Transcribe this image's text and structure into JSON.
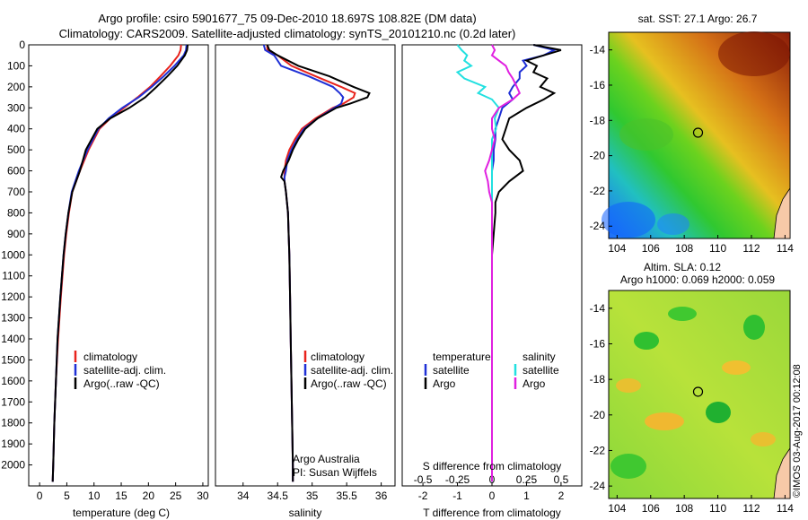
{
  "title_line1": "Argo profile: csiro 5901677_75 09-Dec-2010 18.697S 108.82E (DM data)",
  "title_line2": "Climatology: CARS2009. Satellite-adjusted climatology: synTS_20101210.nc (0.2d later)",
  "footer_stamp": "©IMOS 03-Aug-2017 00:12:08",
  "colors": {
    "climatology": "#e8231c",
    "satellite": "#1f30d6",
    "argo": "#000000",
    "sal_satellite": "#22e0e0",
    "sal_argo": "#e020e0"
  },
  "chart_data": [
    {
      "id": "temperature",
      "type": "line",
      "xlabel": "temperature (deg C)",
      "ylabel": "",
      "xlim": [
        -2,
        31
      ],
      "ylim": [
        2100,
        0
      ],
      "xticks": [
        0,
        5,
        10,
        15,
        20,
        25,
        30
      ],
      "yticks": [
        0,
        100,
        200,
        300,
        400,
        500,
        600,
        700,
        800,
        900,
        1000,
        1100,
        1200,
        1300,
        1400,
        1500,
        1600,
        1700,
        1800,
        1900,
        2000
      ],
      "legend": [
        "climatology",
        "satellite-adj. clim.",
        "Argo(..raw -QC)"
      ],
      "depth": [
        0,
        25,
        50,
        100,
        150,
        200,
        250,
        300,
        350,
        400,
        500,
        600,
        700,
        800,
        900,
        1000,
        1200,
        1400,
        1600,
        1800,
        2000,
        2080
      ],
      "series": [
        {
          "name": "climatology",
          "values": [
            26.0,
            25.9,
            25.5,
            24.0,
            22.2,
            20.3,
            18.0,
            15.5,
            13.0,
            11.0,
            9.0,
            7.4,
            6.0,
            5.4,
            4.9,
            4.5,
            3.9,
            3.4,
            3.0,
            2.7,
            2.5,
            2.4
          ]
        },
        {
          "name": "satellite-adj. clim.",
          "values": [
            27.0,
            26.9,
            26.5,
            24.8,
            22.8,
            20.6,
            18.2,
            15.2,
            12.7,
            10.8,
            8.8,
            7.2,
            5.9,
            5.3,
            4.8,
            4.4,
            3.8,
            3.3,
            3.0,
            2.7,
            2.5,
            2.4
          ]
        },
        {
          "name": "Argo(..raw -QC)",
          "values": [
            27.2,
            27.1,
            26.7,
            25.3,
            23.5,
            21.5,
            19.4,
            16.5,
            13.0,
            10.6,
            8.5,
            7.4,
            6.0,
            5.3,
            4.8,
            4.4,
            3.8,
            3.3,
            3.0,
            2.7,
            2.5,
            2.4
          ]
        }
      ]
    },
    {
      "id": "salinity",
      "type": "line",
      "xlabel": "salinity",
      "ylabel": "",
      "xlim": [
        33.6,
        36.2
      ],
      "ylim": [
        2100,
        0
      ],
      "xticks": [
        34,
        34.5,
        35,
        35.5,
        36
      ],
      "legend": [
        "climatology",
        "satellite-adj. clim.",
        "Argo(..raw -QC)"
      ],
      "note": [
        "Argo Australia",
        "PI: Susan Wijffels"
      ],
      "depth": [
        0,
        25,
        50,
        100,
        150,
        200,
        230,
        250,
        280,
        300,
        350,
        400,
        450,
        500,
        550,
        600,
        630,
        650,
        700,
        800,
        900,
        1000,
        1200,
        1400,
        1600,
        1800,
        2000,
        2080
      ],
      "series": [
        {
          "name": "climatology",
          "values": [
            34.35,
            34.35,
            34.5,
            34.7,
            35.05,
            35.42,
            35.62,
            35.6,
            35.45,
            35.3,
            35.05,
            34.85,
            34.75,
            34.67,
            34.62,
            34.6,
            34.6,
            34.6,
            34.62,
            34.65,
            34.66,
            34.67,
            34.68,
            34.69,
            34.7,
            34.71,
            34.72,
            34.72
          ]
        },
        {
          "name": "satellite-adj. clim.",
          "values": [
            34.3,
            34.32,
            34.45,
            34.55,
            34.95,
            35.3,
            35.4,
            35.45,
            35.42,
            35.32,
            35.08,
            34.88,
            34.78,
            34.7,
            34.64,
            34.62,
            34.6,
            34.6,
            34.62,
            34.65,
            34.66,
            34.67,
            34.68,
            34.69,
            34.7,
            34.71,
            34.72,
            34.72
          ]
        },
        {
          "name": "Argo(..raw -QC)",
          "values": [
            34.35,
            34.38,
            34.5,
            34.8,
            35.25,
            35.6,
            35.83,
            35.8,
            35.55,
            35.35,
            35.08,
            34.9,
            34.8,
            34.72,
            34.66,
            34.58,
            34.55,
            34.6,
            34.62,
            34.65,
            34.66,
            34.67,
            34.68,
            34.69,
            34.7,
            34.71,
            34.72,
            34.72
          ]
        }
      ]
    },
    {
      "id": "differences",
      "type": "line",
      "xlabel": "T difference from climatology",
      "xlabel_top": "S difference from climatology",
      "xlim": [
        -2.6,
        2.6
      ],
      "ylim": [
        2100,
        0
      ],
      "xticks": [
        -2,
        -1,
        0,
        1,
        2
      ],
      "xticks_top": [
        -0.5,
        -0.25,
        0,
        0.25,
        0.5
      ],
      "xtick_labels_top": [
        "-0.5",
        "-0.25",
        "0",
        "0.25",
        "0.5"
      ],
      "legend_temperature_title": "temperature",
      "legend_salinity_title": "salinity",
      "legend": [
        "satellite",
        "Argo",
        "satellite",
        "Argo"
      ],
      "depth": [
        0,
        25,
        50,
        75,
        100,
        130,
        160,
        200,
        230,
        260,
        300,
        350,
        400,
        450,
        500,
        550,
        600,
        650,
        700,
        750,
        800,
        900,
        1000,
        1200,
        1400,
        1600,
        1800,
        2000,
        2080
      ],
      "series": [
        {
          "name": "T satellite",
          "values": [
            1.2,
            1.8,
            1.5,
            0.9,
            1.0,
            0.8,
            0.8,
            0.6,
            0.5,
            0.6,
            0.3,
            0.2,
            0.1,
            0.1,
            0.05,
            0.05,
            0.0,
            0.0,
            0.0,
            0.0,
            0.0,
            0.0,
            0.0,
            0.0,
            0.0,
            0.0,
            0.0,
            0.0,
            0.0
          ]
        },
        {
          "name": "T Argo",
          "values": [
            1.2,
            2.0,
            1.5,
            1.0,
            1.3,
            1.2,
            1.6,
            1.4,
            1.8,
            1.5,
            1.0,
            0.5,
            0.4,
            0.3,
            0.5,
            0.8,
            0.9,
            0.5,
            0.2,
            0.1,
            0.1,
            0.05,
            0.0,
            0.0,
            0.0,
            0.0,
            0.0,
            0.0,
            0.0
          ]
        },
        {
          "name": "S satellite",
          "values": [
            -0.25,
            -0.22,
            -0.18,
            -0.2,
            -0.15,
            -0.25,
            -0.2,
            -0.05,
            -0.1,
            0.0,
            0.05,
            0.02,
            0.03,
            0.0,
            0.0,
            0.0,
            0.0,
            0.0,
            0.0,
            0.0,
            0.0,
            0.0,
            0.0,
            0.0,
            0.0,
            0.0,
            0.0,
            0.0,
            0.0
          ]
        },
        {
          "name": "S Argo",
          "values": [
            0.0,
            0.02,
            0.0,
            0.05,
            0.1,
            0.12,
            0.15,
            0.18,
            0.2,
            0.15,
            0.05,
            0.0,
            0.0,
            0.02,
            0.0,
            -0.02,
            -0.05,
            -0.03,
            -0.02,
            0.0,
            0.0,
            0.0,
            0.0,
            0.0,
            0.0,
            0.0,
            0.0,
            0.0,
            0.0
          ]
        }
      ]
    },
    {
      "id": "sst_map",
      "type": "heatmap",
      "title": "sat. SST: 27.1  Argo: 26.7",
      "xticks": [
        104,
        106,
        108,
        110,
        112,
        114
      ],
      "yticks": [
        -14,
        -16,
        -18,
        -20,
        -22,
        -24
      ],
      "xlim": [
        103.5,
        114.3
      ],
      "ylim": [
        -24.7,
        -13
      ],
      "argo_position": [
        108.82,
        -18.697
      ]
    },
    {
      "id": "sla_map",
      "type": "heatmap",
      "title_line1": "Altim. SLA: 0.12",
      "title_line2": "Argo h1000: 0.069 h2000: 0.059",
      "xticks": [
        104,
        106,
        108,
        110,
        112,
        114
      ],
      "yticks": [
        -14,
        -16,
        -18,
        -20,
        -22,
        -24
      ],
      "xlim": [
        103.5,
        114.3
      ],
      "ylim": [
        -24.7,
        -13
      ],
      "argo_position": [
        108.82,
        -18.697
      ]
    }
  ]
}
